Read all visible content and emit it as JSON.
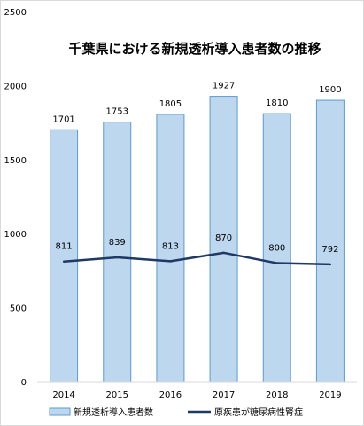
{
  "chart_data": {
    "type": "bar",
    "title": "千葉県における新規透析導入患者数の推移",
    "categories": [
      "2014",
      "2015",
      "2016",
      "2017",
      "2018",
      "2019"
    ],
    "ylim": [
      0,
      2500
    ],
    "yticks": [
      0,
      500,
      1000,
      1500,
      2000,
      2500
    ],
    "grid": false,
    "legend_position": "bottom",
    "series": [
      {
        "name": "新規透析導入患者数",
        "type": "bar",
        "values": [
          1701,
          1753,
          1805,
          1927,
          1810,
          1900
        ],
        "color": "#bdd7ee",
        "edge_color": "#5b9bd5"
      },
      {
        "name": "原疾患が糖尿病性腎症",
        "type": "line",
        "values": [
          811,
          839,
          813,
          870,
          800,
          792
        ],
        "color": "#1f3864"
      }
    ]
  }
}
